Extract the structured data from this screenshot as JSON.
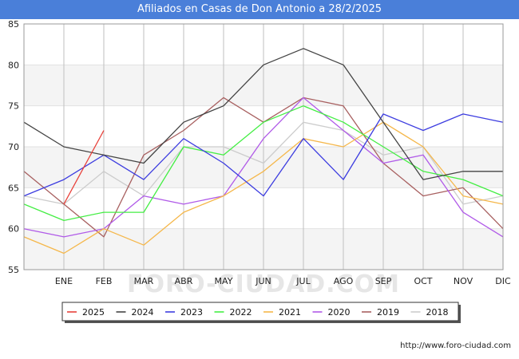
{
  "title": "Afiliados en Casas de Don Antonio a 28/2/2025",
  "watermark": "FORO-CIUDAD.COM",
  "footer": "http://www.foro-ciudad.com",
  "chart_data": {
    "type": "line",
    "title": "Afiliados en Casas de Don Antonio a 28/2/2025",
    "categories": [
      "",
      "ENE",
      "FEB",
      "MAR",
      "ABR",
      "MAY",
      "JUN",
      "JUL",
      "AGO",
      "SEP",
      "OCT",
      "NOV",
      "DIC"
    ],
    "ylim": [
      55,
      85
    ],
    "yticks": [
      55,
      60,
      65,
      70,
      75,
      80,
      85
    ],
    "grid": true,
    "legend_position": "bottom",
    "series": [
      {
        "name": "2025",
        "color": "#e8413a",
        "values": [
          null,
          63,
          72,
          null,
          null,
          null,
          null,
          null,
          null,
          null,
          null,
          null,
          null
        ]
      },
      {
        "name": "2024",
        "color": "#444444",
        "values": [
          73,
          70,
          69,
          68,
          73,
          75,
          80,
          82,
          80,
          73,
          66,
          67,
          67
        ]
      },
      {
        "name": "2023",
        "color": "#3d3de0",
        "values": [
          64,
          66,
          69,
          66,
          71,
          68,
          64,
          71,
          66,
          74,
          72,
          74,
          73
        ]
      },
      {
        "name": "2022",
        "color": "#44ee44",
        "values": [
          63,
          61,
          62,
          62,
          70,
          69,
          73,
          75,
          73,
          70,
          67,
          66,
          64
        ]
      },
      {
        "name": "2021",
        "color": "#f5b74a",
        "values": [
          59,
          57,
          60,
          58,
          62,
          64,
          67,
          71,
          70,
          73,
          70,
          64,
          63
        ]
      },
      {
        "name": "2020",
        "color": "#b05ae8",
        "values": [
          60,
          59,
          60,
          64,
          63,
          64,
          71,
          76,
          72,
          68,
          69,
          62,
          59
        ]
      },
      {
        "name": "2019",
        "color": "#a86060",
        "values": [
          67,
          63,
          59,
          69,
          72,
          76,
          73,
          76,
          75,
          68,
          64,
          65,
          60
        ]
      },
      {
        "name": "2018",
        "color": "#cccccc",
        "values": [
          64,
          63,
          67,
          64,
          70,
          70,
          68,
          73,
          72,
          69,
          70,
          63,
          64
        ]
      }
    ]
  }
}
